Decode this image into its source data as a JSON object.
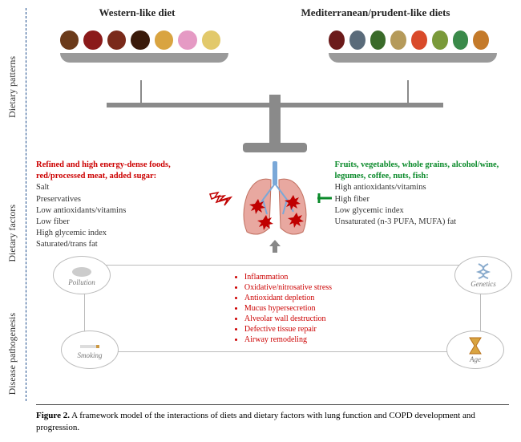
{
  "y_axis": {
    "patterns": "Dietary patterns",
    "factors": "Dietary factors",
    "pathogenesis": "Disease pathogenesis"
  },
  "headers": {
    "left": "Western-like diet",
    "right": "Mediterranean/prudent-like diets"
  },
  "foods": {
    "western_colors": [
      "#6b3a1a",
      "#8b1a1a",
      "#7a2a1a",
      "#3a1a0a",
      "#d9a441",
      "#e59ac4",
      "#e2c96b"
    ],
    "med_colors": [
      "#6b1a1a",
      "#5a6b7a",
      "#3a6b2a",
      "#b59a5a",
      "#d94a2a",
      "#7a9a3a",
      "#3a8a4a",
      "#c47a2a"
    ]
  },
  "factors": {
    "left": {
      "heading": "Refined and high energy-dense foods, red/processed meat, added sugar:",
      "items": [
        "Salt",
        "Preservatives",
        "Low antioxidants/vitamins",
        "Low fiber",
        "High glycemic index",
        "Saturated/trans fat"
      ]
    },
    "right": {
      "heading": "Fruits, vegetables, whole grains, alcohol/wine, legumes, coffee, nuts, fish:",
      "items": [
        "High antioxidants/vitamins",
        "High fiber",
        "Low glycemic index",
        "Unsaturated (n-3 PUFA, MUFA) fat"
      ]
    }
  },
  "lungs": {
    "lung_fill": "#e8a8a0",
    "lung_stroke": "#c07060",
    "trachea_fill": "#7aa8d8",
    "damage_fill": "#c00000"
  },
  "arrows": {
    "harm_color": "#c00000",
    "protect_color": "#0a8a2a",
    "up_color": "#888"
  },
  "patho": {
    "items": [
      "Inflammation",
      "Oxidative/nitrosative stress",
      "Antioxidant depletion",
      "Mucus hypersecretion",
      "Alveolar wall destruction",
      "Defective tissue repair",
      "Airway remodeling"
    ],
    "bubbles": {
      "pollution": "Pollution",
      "smoking": "Smoking",
      "genetics": "Genetics",
      "age": "Age"
    }
  },
  "caption": {
    "label": "Figure 2.",
    "text": "A framework model of the interactions of diets and dietary factors with lung function and COPD development and progression."
  },
  "colors": {
    "divider": "#1a4a8a",
    "scale": "#8a8a8a",
    "caption_border": "#444"
  }
}
